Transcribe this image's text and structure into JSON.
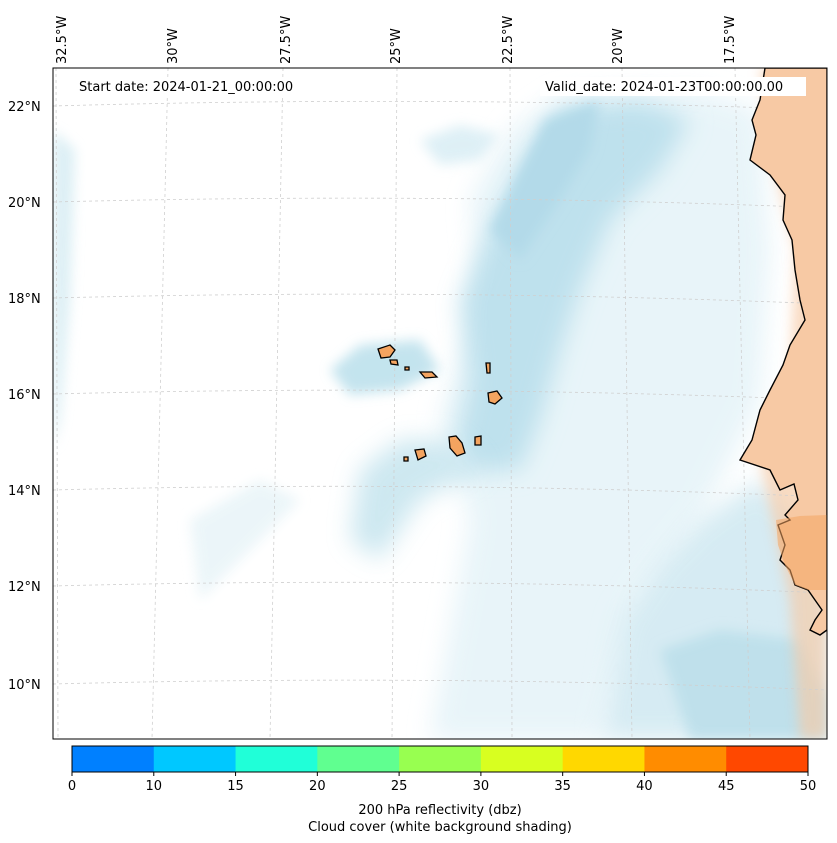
{
  "map": {
    "start_date": "Start date: 2024-01-21_00:00:00",
    "valid_date": "Valid_date: 2024-01-23T00:00:00.00",
    "lon_labels": [
      "32.5°W",
      "30°W",
      "27.5°W",
      "25°W",
      "22.5°W",
      "20°W",
      "17.5°W"
    ],
    "lat_labels": [
      "22°N",
      "20°N",
      "18°N",
      "16°N",
      "14°N",
      "12°N",
      "10°N"
    ],
    "land_color": "#f4a460",
    "coast_color": "#000000",
    "cloud_color": "#add8e6",
    "dust_color": "#f7c9a4"
  },
  "colorbar": {
    "ticks": [
      "0",
      "10",
      "15",
      "20",
      "25",
      "30",
      "35",
      "40",
      "45",
      "50"
    ],
    "colors": [
      "#0080ff",
      "#00c8ff",
      "#20ffd8",
      "#60ff90",
      "#98ff50",
      "#d8ff20",
      "#ffd800",
      "#ff8c00",
      "#ff4800"
    ],
    "label_line1": "200 hPa reflectivity (dbz)",
    "label_line2": "Cloud cover (white background shading)"
  }
}
